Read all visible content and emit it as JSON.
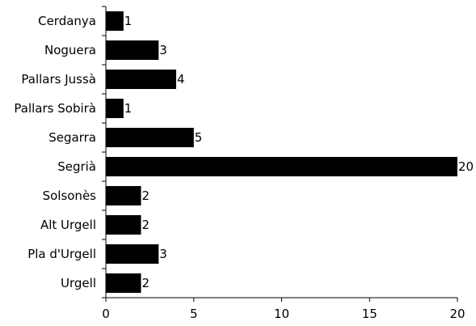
{
  "chart_data": {
    "type": "bar",
    "orientation": "horizontal",
    "categories": [
      "Cerdanya",
      "Noguera",
      "Pallars Jussà",
      "Pallars Sobirà",
      "Segarra",
      "Segrià",
      "Solsonès",
      "Alt Urgell",
      "Pla d'Urgell",
      "Urgell"
    ],
    "values": [
      1,
      3,
      4,
      1,
      5,
      20,
      2,
      2,
      3,
      2
    ],
    "title": "",
    "xlabel": "",
    "ylabel": "",
    "xlim": [
      0,
      20
    ],
    "xticks": [
      0,
      5,
      10,
      15,
      20
    ],
    "grid": false,
    "legend": "none",
    "data_labels": true,
    "colors": {
      "bar": "#000000",
      "axis": "#000000",
      "background": "#ffffff"
    }
  }
}
